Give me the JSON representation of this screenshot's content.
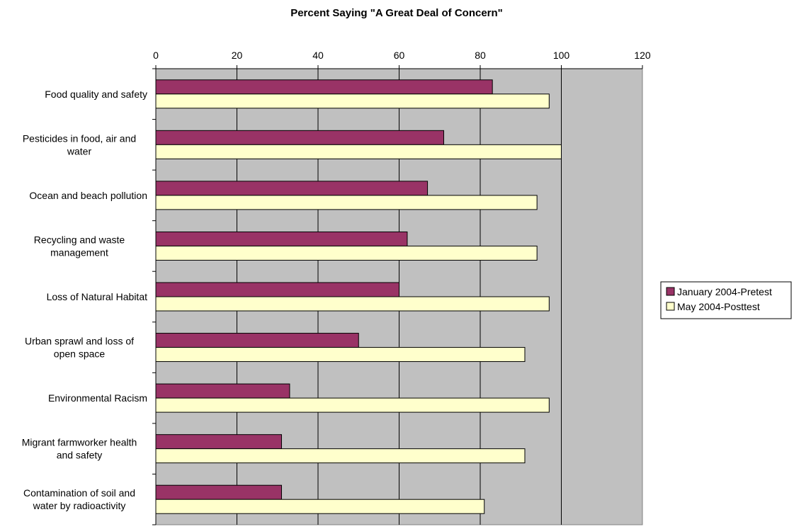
{
  "chart_data": {
    "type": "bar",
    "orientation": "horizontal",
    "title": "Percent Saying \"A Great Deal of Concern\"",
    "xlabel": "",
    "ylabel": "",
    "xlim": [
      0,
      120
    ],
    "x_ticks": [
      "0",
      "20",
      "40",
      "60",
      "80",
      "100",
      "120"
    ],
    "x_axis_position": "top",
    "grid": true,
    "legend_position": "right",
    "categories": [
      [
        "Food quality and safety"
      ],
      [
        "Pesticides in food, air and",
        "water"
      ],
      [
        "Ocean and beach pollution"
      ],
      [
        "Recycling and waste",
        "management"
      ],
      [
        "Loss of Natural Habitat"
      ],
      [
        "Urban sprawl and loss of",
        "open space"
      ],
      [
        "Environmental Racism"
      ],
      [
        "Migrant farmworker health",
        "and safety"
      ],
      [
        "Contamination of soil and",
        "water by radioactivity"
      ]
    ],
    "series": [
      {
        "name": "January 2004-Pretest",
        "color": "#993366",
        "values": [
          83,
          71,
          67,
          62,
          60,
          50,
          33,
          31,
          31
        ]
      },
      {
        "name": "May 2004-Posttest",
        "color": "#FFFFCC",
        "values": [
          97,
          100,
          94,
          94,
          97,
          91,
          97,
          91,
          81
        ]
      }
    ],
    "plot_background": "#C0C0C0"
  }
}
